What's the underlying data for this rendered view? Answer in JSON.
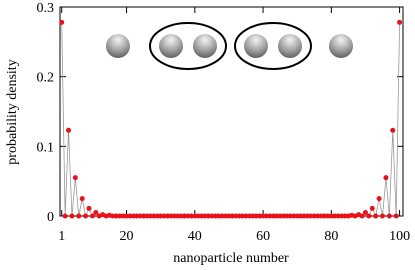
{
  "chart_data": {
    "type": "line",
    "xlabel": "nanoparticle number",
    "ylabel": "probability density",
    "x": [
      1,
      2,
      3,
      4,
      5,
      6,
      7,
      8,
      9,
      10,
      11,
      12,
      13,
      14,
      15,
      16,
      17,
      18,
      19,
      20,
      21,
      22,
      23,
      24,
      25,
      26,
      27,
      28,
      29,
      30,
      31,
      32,
      33,
      34,
      35,
      36,
      37,
      38,
      39,
      40,
      41,
      42,
      43,
      44,
      45,
      46,
      47,
      48,
      49,
      50,
      51,
      52,
      53,
      54,
      55,
      56,
      57,
      58,
      59,
      60,
      61,
      62,
      63,
      64,
      65,
      66,
      67,
      68,
      69,
      70,
      71,
      72,
      73,
      74,
      75,
      76,
      77,
      78,
      79,
      80,
      81,
      82,
      83,
      84,
      85,
      86,
      87,
      88,
      89,
      90,
      91,
      92,
      93,
      94,
      95,
      96,
      97,
      98,
      99,
      100
    ],
    "series": [
      {
        "color": "#e8121b",
        "line_color": "#999999",
        "values": [
          0.278,
          0,
          0.123,
          0,
          0.055,
          0,
          0.025,
          0,
          0.011,
          0,
          0.005,
          0,
          0.002,
          0,
          0.001,
          0,
          0,
          0,
          0,
          0,
          0,
          0,
          0,
          0,
          0,
          0,
          0,
          0,
          0,
          0,
          0,
          0,
          0,
          0,
          0,
          0,
          0,
          0,
          0,
          0,
          0,
          0,
          0,
          0,
          0,
          0,
          0,
          0,
          0,
          0,
          0,
          0,
          0,
          0,
          0,
          0,
          0,
          0,
          0,
          0,
          0,
          0,
          0,
          0,
          0,
          0,
          0,
          0,
          0,
          0,
          0,
          0,
          0,
          0,
          0,
          0,
          0,
          0,
          0,
          0,
          0,
          0,
          0,
          0,
          0,
          0.001,
          0,
          0.002,
          0,
          0.005,
          0,
          0.011,
          0,
          0.025,
          0,
          0.055,
          0,
          0.123,
          0,
          0.278
        ]
      }
    ],
    "xlim": [
      0.5,
      101
    ],
    "ylim": [
      0,
      0.3
    ],
    "xticks": [
      1,
      20,
      40,
      60,
      80,
      100
    ],
    "yticks": [
      0,
      0.1,
      0.2,
      0.3
    ]
  }
}
